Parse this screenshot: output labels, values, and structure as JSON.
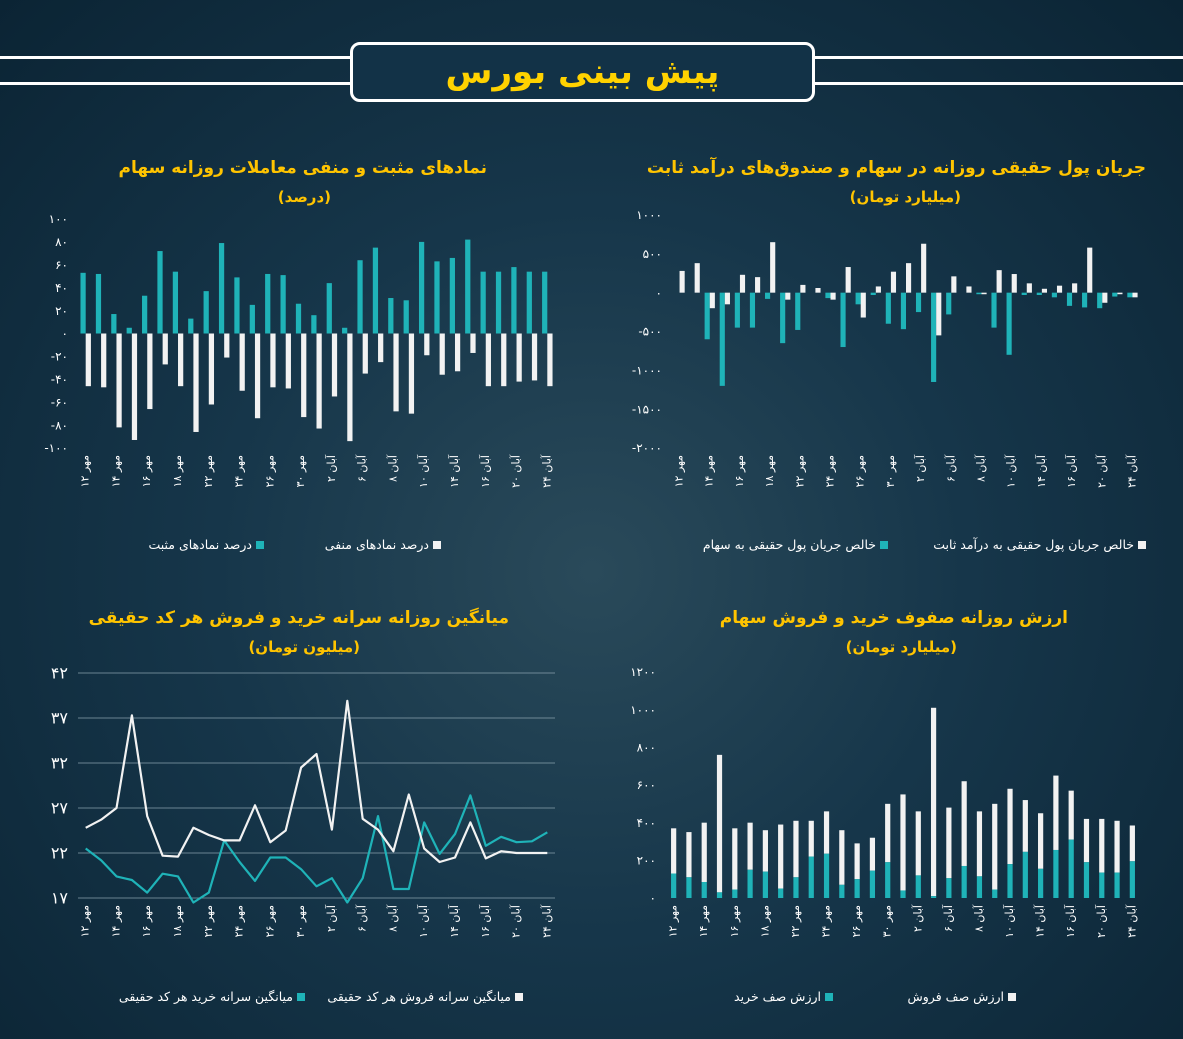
{
  "header": {
    "title": "پیش بینی بورس"
  },
  "colors": {
    "teal": "#1fb3b8",
    "white": "#f2f2f2",
    "title": "#ffc400",
    "banner_text": "#ffd200"
  },
  "x_labels": [
    "۱۲ مهر",
    "۱۴ مهر",
    "۱۶ مهر",
    "۱۸ مهر",
    "۲۲ مهر",
    "۲۴ مهر",
    "۲۶ مهر",
    "۳۰ مهر",
    "۲ آبان",
    "۶ آبان",
    "۸ آبان",
    "۱۰ آبان",
    "۱۴ آبان",
    "۱۶ آبان",
    "۲۰ آبان",
    "۲۴ آبان"
  ],
  "charts": {
    "money_flow": {
      "title": "جریان پول حقیقی روزانه در سهام و صندوق‌های درآمد ثابت",
      "subtitle": "(میلیارد تومان)",
      "legend": [
        "خالص جریان پول حقیقی به سهام",
        "خالص جریان پول حقیقی به درآمد ثابت"
      ]
    },
    "symbols": {
      "title": "نمادهای مثبت و منفی معاملات روزانه سهام",
      "subtitle": "(درصد)",
      "legend": [
        "درصد نمادهای مثبت",
        "درصد نمادهای منفی"
      ]
    },
    "queues": {
      "title": "ارزش روزانه صفوف خرید و فروش سهام",
      "subtitle": "(میلیارد تومان)",
      "legend": [
        "ارزش صف خرید",
        "ارزش صف فروش"
      ]
    },
    "per_capita": {
      "title": "میانگین روزانه سرانه خرید و فروش هر کد حقیقی",
      "subtitle": "(میلیون تومان)",
      "legend": [
        "میانگین سرانه خرید هر کد حقیقی",
        "میانگین سرانه فروش هر کد حقیقی"
      ]
    }
  },
  "chart_data": [
    {
      "id": "money_flow",
      "type": "bar",
      "categories": [
        "۱۲ مهر",
        "",
        "۱۴ مهر",
        "",
        "۱۶ مهر",
        "",
        "۱۸ مهر",
        "",
        "۲۲ مهر",
        "",
        "۲۴ مهر",
        "",
        "۲۶ مهر",
        "",
        "۳۰ مهر",
        "",
        "۲ آبان",
        "",
        "۶ آبان",
        "",
        "۸ آبان",
        "",
        "۱۰ آبان",
        "",
        "۱۴ آبان",
        "",
        "۱۶ آبان",
        "",
        "۲۰ آبان",
        "",
        "۲۴ آبان"
      ],
      "yticks": [
        "۱۰۰۰",
        "۵۰۰",
        "۰",
        "-۵۰۰",
        "-۱۰۰۰",
        "-۱۵۰۰",
        "-۲۰۰۰"
      ],
      "ylim": [
        -2000,
        1000
      ],
      "series": [
        {
          "name": "خالص جریان پول حقیقی به سهام",
          "values": [
            0,
            0,
            -600,
            -1200,
            -450,
            -450,
            -80,
            -650,
            -480,
            0,
            -70,
            -700,
            -150,
            -30,
            -400,
            -470,
            -250,
            -1150,
            -280,
            0,
            -20,
            -450,
            -800,
            -30,
            -30,
            -60,
            -170,
            -190,
            -200,
            -50,
            -60
          ]
        },
        {
          "name": "خالص جریان پول حقیقی به درآمد ثابت",
          "values": [
            280,
            380,
            -200,
            -150,
            230,
            200,
            650,
            -90,
            100,
            60,
            -90,
            330,
            -320,
            80,
            270,
            380,
            630,
            -550,
            210,
            80,
            -20,
            290,
            240,
            120,
            50,
            90,
            120,
            580,
            -130,
            -20,
            -60
          ]
        }
      ]
    },
    {
      "id": "symbols",
      "type": "bar",
      "categories": [
        "۱۲ مهر",
        "",
        "۱۴ مهر",
        "",
        "۱۶ مهر",
        "",
        "۱۸ مهر",
        "",
        "۲۲ مهر",
        "",
        "۲۴ مهر",
        "",
        "۲۶ مهر",
        "",
        "۳۰ مهر",
        "",
        "۲ آبان",
        "",
        "۶ آبان",
        "",
        "۸ آبان",
        "",
        "۱۰ آبان",
        "",
        "۱۴ آبان",
        "",
        "۱۶ آبان",
        "",
        "۲۰ آبان",
        "",
        "۲۴ آبان"
      ],
      "yticks": [
        "۱۰۰",
        "۸۰",
        "۶۰",
        "۴۰",
        "۲۰",
        "۰",
        "-۲۰",
        "-۴۰",
        "-۶۰",
        "-۸۰",
        "-۱۰۰"
      ],
      "ylim": [
        -100,
        100
      ],
      "series": [
        {
          "name": "درصد نمادهای مثبت",
          "values": [
            53,
            52,
            17,
            5,
            33,
            72,
            54,
            13,
            37,
            79,
            49,
            25,
            52,
            51,
            26,
            16,
            44,
            5,
            64,
            75,
            31,
            29,
            80,
            63,
            66,
            82,
            54,
            54,
            58,
            54,
            54
          ]
        },
        {
          "name": "درصد نمادهای منفی",
          "values": [
            -46,
            -47,
            -82,
            -93,
            -66,
            -27,
            -46,
            -86,
            -62,
            -21,
            -50,
            -74,
            -47,
            -48,
            -73,
            -83,
            -55,
            -94,
            -35,
            -25,
            -68,
            -70,
            -19,
            -36,
            -33,
            -17,
            -46,
            -46,
            -42,
            -41,
            -46
          ]
        }
      ]
    },
    {
      "id": "queues",
      "type": "bar",
      "categories": [
        "۱۲ مهر",
        "",
        "۱۴ مهر",
        "",
        "۱۶ مهر",
        "",
        "۱۸ مهر",
        "",
        "۲۲ مهر",
        "",
        "۲۴ مهر",
        "",
        "۲۶ مهر",
        "",
        "۳۰ مهر",
        "",
        "۲ آبان",
        "",
        "۶ آبان",
        "",
        "۸ آبان",
        "",
        "۱۰ آبان",
        "",
        "۱۴ آبان",
        "",
        "۱۶ آبان",
        "",
        "۲۰ آبان",
        "",
        "۲۴ آبان"
      ],
      "yticks": [
        "۱۲۰۰",
        "۱۰۰۰",
        "۸۰۰",
        "۶۰۰",
        "۴۰۰",
        "۲۰۰",
        "۰"
      ],
      "ylim": [
        0,
        1200
      ],
      "series": [
        {
          "name": "ارزش صف خرید",
          "values": [
            130,
            110,
            85,
            30,
            45,
            150,
            140,
            50,
            110,
            220,
            235,
            70,
            100,
            145,
            190,
            40,
            120,
            10,
            105,
            170,
            115,
            45,
            180,
            245,
            155,
            255,
            310,
            190,
            135,
            135,
            195
          ]
        },
        {
          "name": "ارزش صف فروش",
          "values": [
            370,
            350,
            400,
            760,
            370,
            400,
            360,
            390,
            410,
            410,
            460,
            360,
            290,
            320,
            500,
            550,
            460,
            1010,
            480,
            620,
            460,
            500,
            580,
            520,
            450,
            650,
            570,
            420,
            420,
            410,
            385
          ]
        }
      ]
    },
    {
      "id": "per_capita",
      "type": "line",
      "categories": [
        "۱۲ مهر",
        "",
        "۱۴ مهر",
        "",
        "۱۶ مهر",
        "",
        "۱۸ مهر",
        "",
        "۲۲ مهر",
        "",
        "۲۴ مهر",
        "",
        "۲۶ مهر",
        "",
        "۳۰ مهر",
        "",
        "۲ آبان",
        "",
        "۶ آبان",
        "",
        "۸ آبان",
        "",
        "۱۰ آبان",
        "",
        "۱۴ آبان",
        "",
        "۱۶ آبان",
        "",
        "۲۰ آبان",
        "",
        "۲۴ آبان"
      ],
      "yticks": [
        "۴۲",
        "۳۷",
        "۳۲",
        "۲۷",
        "۲۲",
        "۱۷"
      ],
      "ylim": [
        17,
        42
      ],
      "series": [
        {
          "name": "میانگین سرانه خرید هر کد حقیقی",
          "values": [
            22.5,
            21.2,
            19.4,
            19,
            17.6,
            19.7,
            19.4,
            16.5,
            17.6,
            23.4,
            21,
            18.9,
            21.5,
            21.5,
            20.2,
            18.3,
            19.2,
            16.5,
            19.2,
            26.1,
            18,
            18,
            25.4,
            21.9,
            24.1,
            28.4,
            22.8,
            23.8,
            23.2,
            23.3,
            24.3
          ]
        },
        {
          "name": "میانگین سرانه فروش هر کد حقیقی",
          "values": [
            24.8,
            25.7,
            27,
            37.3,
            26.1,
            21.7,
            21.6,
            24.8,
            24,
            23.4,
            23.4,
            27.3,
            23.2,
            24.5,
            31.5,
            33,
            24.6,
            38.9,
            25.8,
            24.6,
            22.2,
            28.5,
            22.5,
            21,
            21.5,
            25.4,
            21.4,
            22.2,
            22,
            22,
            22
          ]
        }
      ]
    }
  ]
}
